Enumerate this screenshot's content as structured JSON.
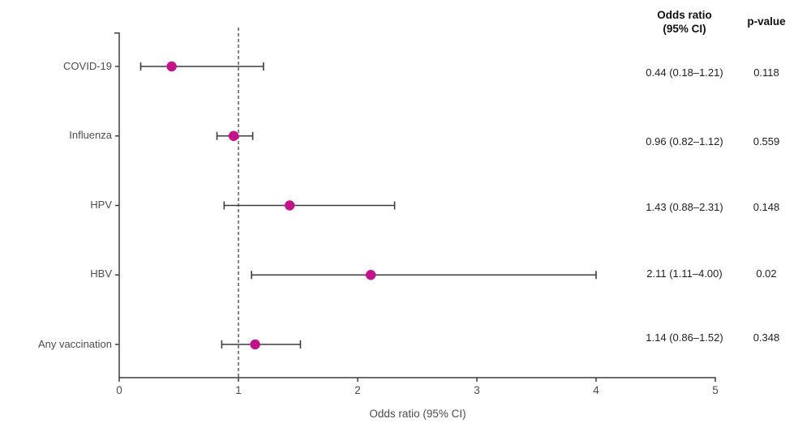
{
  "header": {
    "or_col_line1": "Odds ratio",
    "or_col_line2": "(95% CI)",
    "p_col": "p-value"
  },
  "axis": {
    "xlabel": "Odds ratio (95% CI)",
    "ticks": [
      "0",
      "1",
      "2",
      "3",
      "4",
      "5"
    ]
  },
  "colors": {
    "marker": "#C5128C",
    "line": "#3d3d3d",
    "dashed_line": "#333333"
  },
  "rows": [
    {
      "label": "COVID-19",
      "or_ci": "0.44 (0.18–1.21)",
      "p": "0.118"
    },
    {
      "label": "Influenza",
      "or_ci": "0.96 (0.82–1.12)",
      "p": "0.559"
    },
    {
      "label": "HPV",
      "or_ci": "1.43 (0.88–2.31)",
      "p": "0.148"
    },
    {
      "label": "HBV",
      "or_ci": "2.11 (1.11–4.00)",
      "p": "0.02"
    },
    {
      "label": "Any vaccination",
      "or_ci": "1.14 (0.86–1.52)",
      "p": "0.348"
    }
  ],
  "chart_data": {
    "type": "forest",
    "title": "",
    "categories": [
      "COVID-19",
      "Influenza",
      "HPV",
      "HBV",
      "Any vaccination"
    ],
    "series": [
      {
        "name": "Odds ratio",
        "values": [
          0.44,
          0.96,
          1.43,
          2.11,
          1.14
        ]
      }
    ],
    "ci_low": [
      0.18,
      0.82,
      0.88,
      1.11,
      0.86
    ],
    "ci_high": [
      1.21,
      1.12,
      2.31,
      4.0,
      1.52
    ],
    "p_values": [
      0.118,
      0.559,
      0.148,
      0.02,
      0.348
    ],
    "reference_line": 1,
    "xlim": [
      0,
      5
    ],
    "xlabel": "Odds ratio (95% CI)",
    "grid": false,
    "legend": "none"
  }
}
